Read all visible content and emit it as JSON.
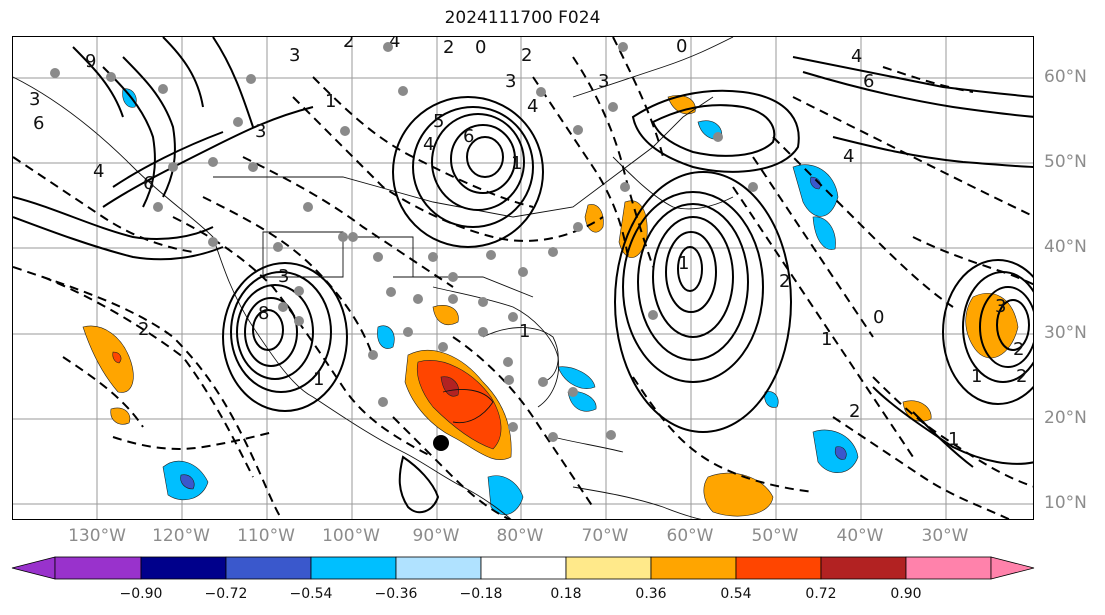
{
  "title": "2024111700 F024",
  "map": {
    "projection": "lat-lon",
    "lon_labels": [
      "130°W",
      "120°W",
      "110°W",
      "100°W",
      "90°W",
      "80°W",
      "70°W",
      "60°W",
      "50°W",
      "40°W",
      "30°W"
    ],
    "lat_labels": [
      "60°N",
      "50°N",
      "40°N",
      "30°N",
      "20°N",
      "10°N"
    ],
    "contour_labels": [
      "3",
      "6",
      "9",
      "4",
      "3",
      "6",
      "8",
      "3",
      "1",
      "2",
      "3",
      "2",
      "1",
      "4",
      "2",
      "0",
      "4",
      "6",
      "5",
      "4",
      "3",
      "1",
      "3",
      "2",
      "1",
      "0",
      "1",
      "2",
      "1",
      "0",
      "2",
      "4",
      "6",
      "4",
      "3",
      "2",
      "1",
      "2",
      "1"
    ],
    "contour_style": {
      "positive": "solid black",
      "negative": "dashed black"
    },
    "markers": {
      "stations": "gray dots",
      "storm_center": "black dot"
    }
  },
  "colorbar": {
    "ticks": [
      "−0.90",
      "−0.72",
      "−0.54",
      "−0.36",
      "−0.18",
      "0.18",
      "0.36",
      "0.54",
      "0.72",
      "0.90"
    ],
    "colors": [
      "#9932cc",
      "#00008b",
      "#3a58cc",
      "#00bfff",
      "#b0e2ff",
      "#ffffff",
      "#ffe98a",
      "#ffa500",
      "#ff4500",
      "#b22222",
      "#ff82ab"
    ],
    "extend": "both"
  }
}
